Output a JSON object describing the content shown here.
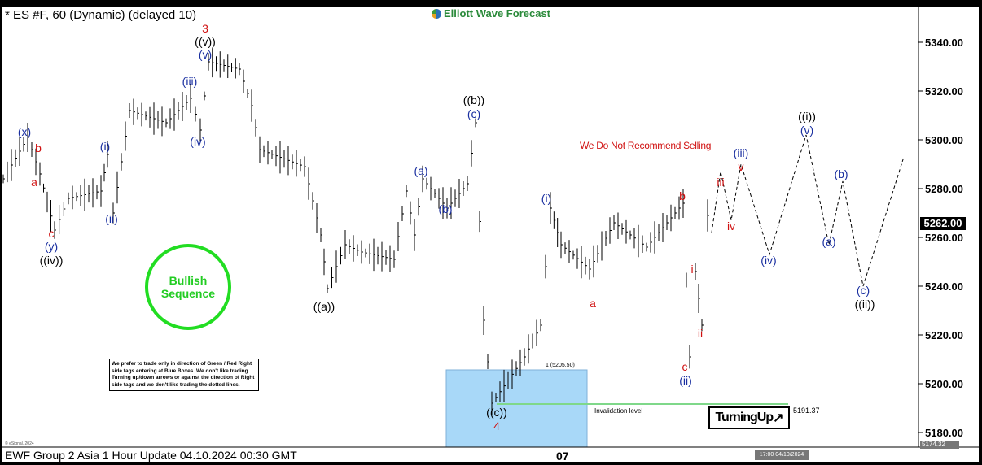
{
  "header": {
    "title": "* ES #F, 60 (Dynamic) (delayed 10)",
    "logo": "Elliott Wave Forecast"
  },
  "footer": {
    "caption": "EWF Group 2 Asia 1 Hour Update 04.10.2024 00:30 GMT",
    "x_label": "07",
    "time_tag": "17:00 04/10/2024",
    "copyright": "© eSignal, 2024"
  },
  "annotations": {
    "note": "We prefer to trade only in direction of Green / Red Right side tags entering at Blue Boxes. We don't like trading Turning up/down arrows or against the direction of Right side tags and we don't like trading the dotted lines.",
    "bullish": "Bullish Sequence",
    "warning": "We Do Not Recommend Selling",
    "blue_box_label": "1 (5205.50)",
    "invalidation": "Invalidation level",
    "invalidation_price": "5191.37",
    "turning": "TurningUp",
    "turning_icon": "arrow-up-right-icon",
    "last_price": "5262.00",
    "low_tag": "5174.32"
  },
  "colors": {
    "up_box": "#a8d8f8",
    "invalidation_line": "#7fd88a",
    "bullish": "#22dd22",
    "wave_blue": "#1a2fa0",
    "wave_red": "#d01010",
    "wave_black": "#000000"
  },
  "chart_data": {
    "type": "line",
    "title": "* ES #F, 60 (Dynamic) (delayed 10)",
    "ylim": [
      5175,
      5348
    ],
    "yticks": [
      "5180.00",
      "5200.00",
      "5220.00",
      "5240.00",
      "5260.00",
      "5280.00",
      "5300.00",
      "5320.00",
      "5340.00"
    ],
    "xticks": [
      "07"
    ],
    "grid": false,
    "series": [
      {
        "style": "price-bars",
        "values": [
          5284,
          5301,
          5286,
          5263,
          5276,
          5279,
          5294,
          5270,
          5312,
          5307,
          5317,
          5304,
          5332,
          5329,
          5314,
          5296,
          5289,
          5261,
          5239,
          5257,
          5254,
          5251,
          5279,
          5261,
          5284,
          5272,
          5282,
          5307,
          5226,
          5192,
          5211,
          5224,
          5272,
          5257,
          5247,
          5266,
          5256,
          5274,
          5211,
          5246,
          5224,
          5269,
          5262
        ]
      },
      {
        "style": "dashed-projection",
        "values": [
          5262,
          5287,
          5267,
          5290,
          5253,
          5302,
          5257,
          5283,
          5240,
          5293
        ]
      }
    ],
    "wave_labels": [
      {
        "text": "(x)",
        "color": "blue"
      },
      {
        "text": "b",
        "color": "red"
      },
      {
        "text": "a",
        "color": "red"
      },
      {
        "text": "c",
        "color": "red"
      },
      {
        "text": "(y)",
        "color": "blue"
      },
      {
        "text": "((iv))",
        "color": "black"
      },
      {
        "text": "(i)",
        "color": "blue"
      },
      {
        "text": "(ii)",
        "color": "blue"
      },
      {
        "text": "3",
        "color": "red"
      },
      {
        "text": "((v))",
        "color": "black"
      },
      {
        "text": "(v)",
        "color": "blue"
      },
      {
        "text": "(iii)",
        "color": "blue"
      },
      {
        "text": "(iv)",
        "color": "blue"
      },
      {
        "text": "((a))",
        "color": "black"
      },
      {
        "text": "(a)",
        "color": "blue"
      },
      {
        "text": "(b)",
        "color": "blue"
      },
      {
        "text": "((b))",
        "color": "black"
      },
      {
        "text": "(c)",
        "color": "blue"
      },
      {
        "text": "((c))",
        "color": "black"
      },
      {
        "text": "4",
        "color": "red"
      },
      {
        "text": "(i)",
        "color": "blue"
      },
      {
        "text": "a",
        "color": "red"
      },
      {
        "text": "b",
        "color": "red"
      },
      {
        "text": "i",
        "color": "red"
      },
      {
        "text": "ii",
        "color": "red"
      },
      {
        "text": "c",
        "color": "red"
      },
      {
        "text": "(ii)",
        "color": "blue"
      },
      {
        "text": "iii",
        "color": "red"
      },
      {
        "text": "iv",
        "color": "red"
      },
      {
        "text": "v",
        "color": "red"
      },
      {
        "text": "(iii)",
        "color": "blue"
      },
      {
        "text": "(iv)",
        "color": "blue"
      },
      {
        "text": "((i))",
        "color": "black"
      },
      {
        "text": "(v)",
        "color": "blue"
      },
      {
        "text": "(b)",
        "color": "blue"
      },
      {
        "text": "(a)",
        "color": "blue"
      },
      {
        "text": "(c)",
        "color": "blue"
      },
      {
        "text": "((ii))",
        "color": "black"
      }
    ]
  }
}
